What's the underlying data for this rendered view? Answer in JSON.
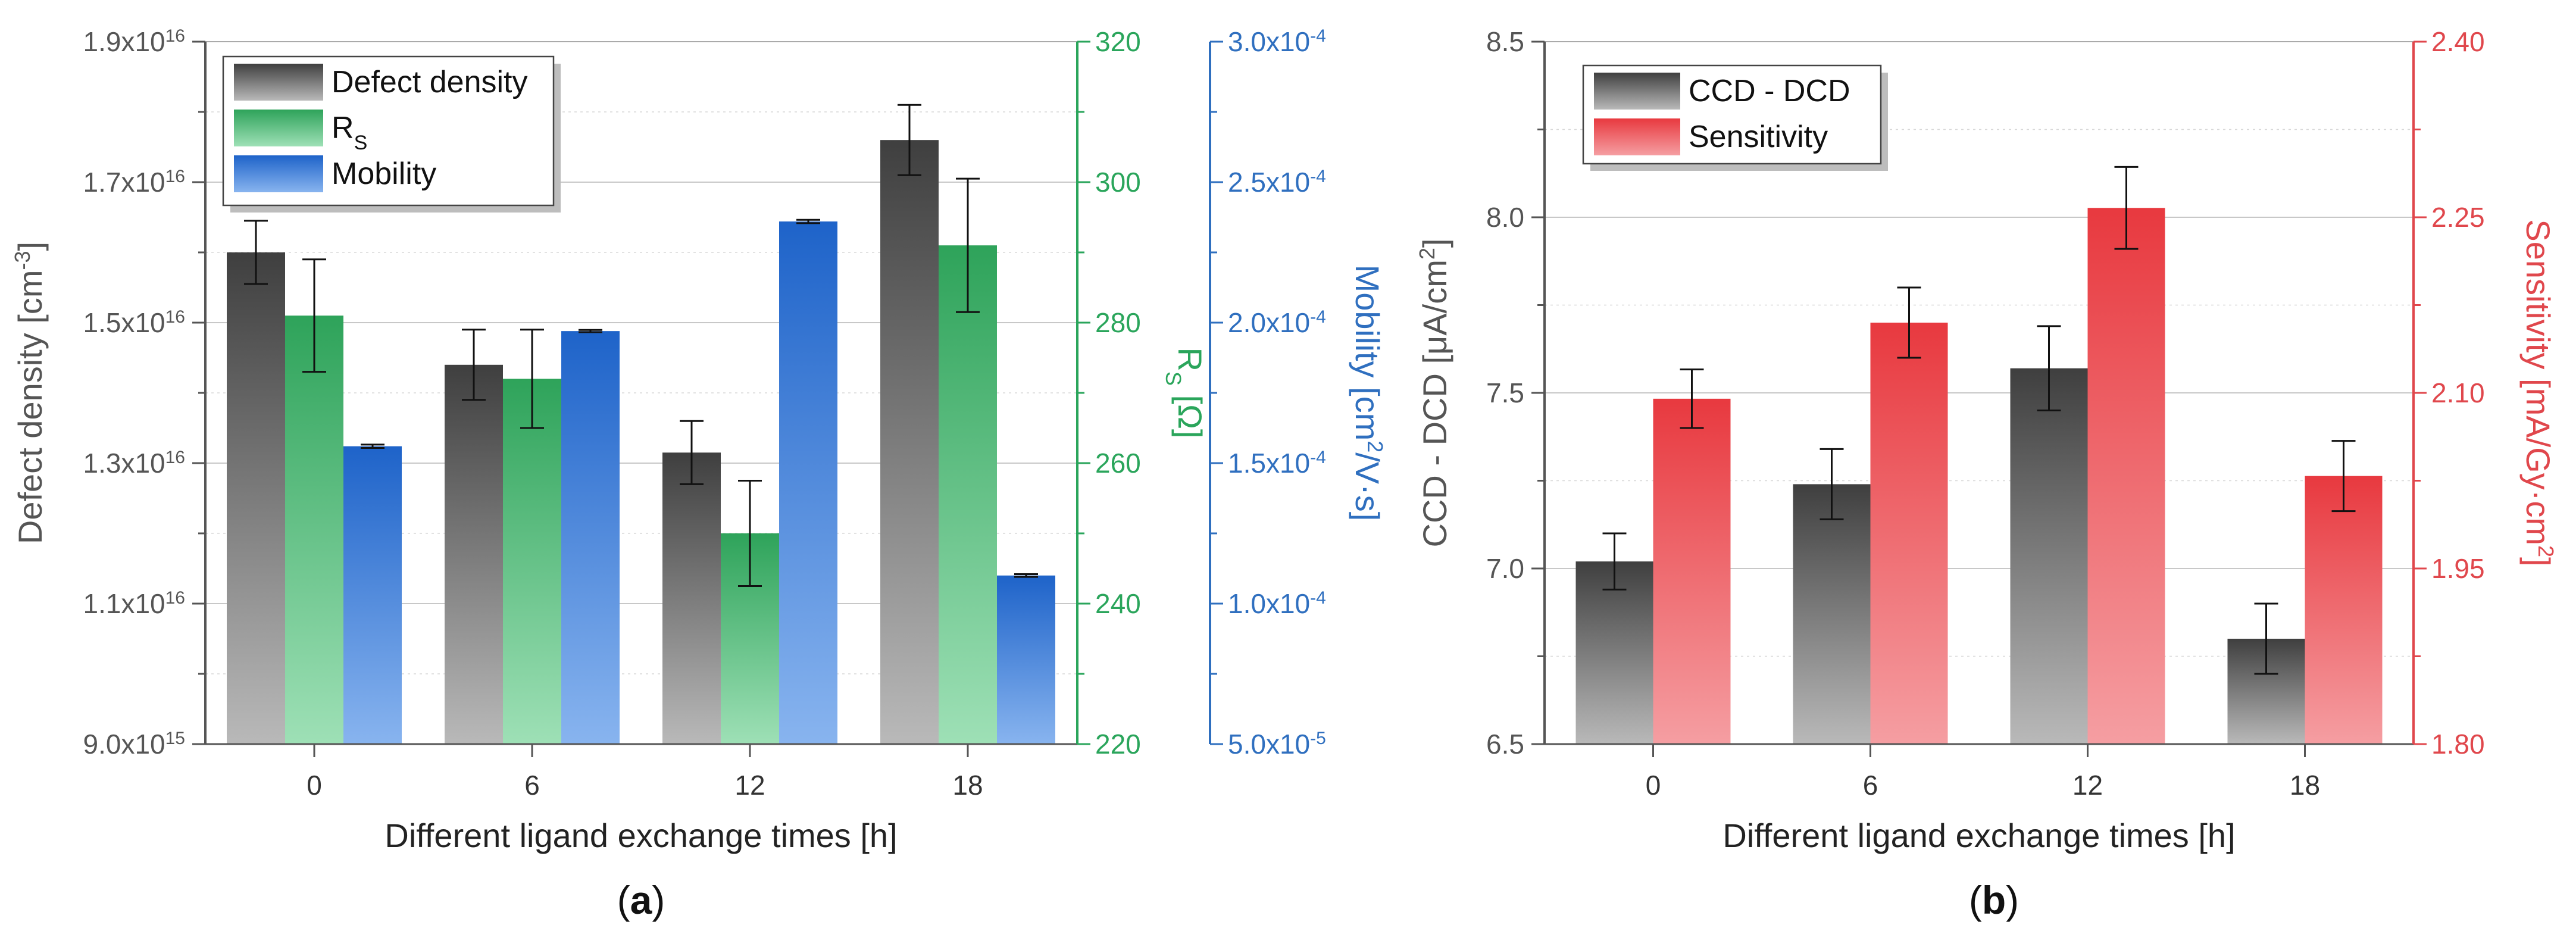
{
  "chart_data": [
    {
      "id": "a",
      "type": "bar",
      "panel_label": "(a)",
      "categories": [
        "0",
        "6",
        "12",
        "18"
      ],
      "xlabel": "Different ligand exchange times [h]",
      "axes": [
        {
          "id": "y1",
          "side": "left",
          "color": "#555555",
          "text_color": "#555555",
          "range": [
            9000000000000000.0,
            1.9e+16
          ],
          "ticks": [
            9000000000000000.0,
            1.1e+16,
            1.3e+16,
            1.5e+16,
            1.7e+16,
            1.9e+16
          ],
          "tick_labels": [
            {
              "m": "9.0x10",
              "e": "15"
            },
            {
              "m": "1.1x10",
              "e": "16"
            },
            {
              "m": "1.3x10",
              "e": "16"
            },
            {
              "m": "1.5x10",
              "e": "16"
            },
            {
              "m": "1.7x10",
              "e": "16"
            },
            {
              "m": "1.9x10",
              "e": "16"
            }
          ],
          "label_parts": [
            {
              "t": "Defect density [cm"
            },
            {
              "t": "-3",
              "sup": true
            },
            {
              "t": "]"
            }
          ]
        },
        {
          "id": "y2",
          "side": "right",
          "offset": 0,
          "color": "#2aa55b",
          "text_color": "#2aa55b",
          "range": [
            220,
            320
          ],
          "ticks": [
            220,
            240,
            260,
            280,
            300,
            320
          ],
          "tick_labels": [
            {
              "m": "220"
            },
            {
              "m": "240"
            },
            {
              "m": "260"
            },
            {
              "m": "280"
            },
            {
              "m": "300"
            },
            {
              "m": "320"
            }
          ],
          "label_parts": [
            {
              "t": "R"
            },
            {
              "t": "S",
              "sub": true
            },
            {
              "t": " [Ω]"
            }
          ]
        },
        {
          "id": "y3",
          "side": "right",
          "offset": 1,
          "color": "#2f6fbf",
          "text_color": "#2f6fbf",
          "range": [
            5e-05,
            0.0003
          ],
          "ticks": [
            5e-05,
            0.0001,
            0.00015,
            0.0002,
            0.00025,
            0.0003
          ],
          "tick_labels": [
            {
              "m": "5.0x10",
              "e": "-5"
            },
            {
              "m": "1.0x10",
              "e": "-4"
            },
            {
              "m": "1.5x10",
              "e": "-4"
            },
            {
              "m": "2.0x10",
              "e": "-4"
            },
            {
              "m": "2.5x10",
              "e": "-4"
            },
            {
              "m": "3.0x10",
              "e": "-4"
            }
          ],
          "label_parts": [
            {
              "t": "Mobility [cm"
            },
            {
              "t": "2",
              "sup": true
            },
            {
              "t": "/V·s]"
            }
          ]
        }
      ],
      "series": [
        {
          "name": "Defect density",
          "legend_parts": [
            {
              "t": "Defect density"
            }
          ],
          "axis": "y1",
          "values": [
            1.6e+16,
            1.44e+16,
            1.315e+16,
            1.76e+16
          ],
          "errors": [
            450000000000000.0,
            500000000000000.0,
            450000000000000.0,
            500000000000000.0
          ],
          "color_top": "#3f3f3f",
          "color_bottom": "#b9b9b9"
        },
        {
          "name": "RS",
          "legend_parts": [
            {
              "t": "R"
            },
            {
              "t": "S",
              "sub": true
            }
          ],
          "axis": "y2",
          "values": [
            281,
            272,
            250,
            291
          ],
          "errors": [
            8,
            7,
            7.5,
            9.5
          ],
          "color_top": "#2ea35a",
          "color_bottom": "#9ee0b6"
        },
        {
          "name": "Mobility",
          "legend_parts": [
            {
              "t": "Mobility"
            }
          ],
          "axis": "y3",
          "values": [
            0.000156,
            0.000197,
            0.000236,
            0.00011
          ],
          "errors": [
            6e-07,
            4e-07,
            6e-07,
            5e-07
          ],
          "color_top": "#1e63c9",
          "color_bottom": "#88b4ef"
        }
      ]
    },
    {
      "id": "b",
      "type": "bar",
      "panel_label": "(b)",
      "categories": [
        "0",
        "6",
        "12",
        "18"
      ],
      "xlabel": "Different ligand exchange times [h]",
      "axes": [
        {
          "id": "y1",
          "side": "left",
          "color": "#555555",
          "text_color": "#555555",
          "range": [
            6.5,
            8.5
          ],
          "ticks": [
            6.5,
            7.0,
            7.5,
            8.0,
            8.5
          ],
          "tick_labels": [
            {
              "m": "6.5"
            },
            {
              "m": "7.0"
            },
            {
              "m": "7.5"
            },
            {
              "m": "8.0"
            },
            {
              "m": "8.5"
            }
          ],
          "label_parts": [
            {
              "t": "CCD - DCD [μA/cm"
            },
            {
              "t": "2",
              "sup": true
            },
            {
              "t": "]"
            }
          ]
        },
        {
          "id": "y2",
          "side": "right",
          "offset": 0,
          "color": "#e0474c",
          "text_color": "#e0474c",
          "range": [
            1.8,
            2.4
          ],
          "ticks": [
            1.8,
            1.95,
            2.1,
            2.25,
            2.4
          ],
          "tick_labels": [
            {
              "m": "1.80"
            },
            {
              "m": "1.95"
            },
            {
              "m": "2.10"
            },
            {
              "m": "2.25"
            },
            {
              "m": "2.40"
            }
          ],
          "label_parts": [
            {
              "t": "Sensitivity [mA/Gy·cm"
            },
            {
              "t": "2",
              "sup": true
            },
            {
              "t": "]"
            }
          ]
        }
      ],
      "series": [
        {
          "name": "CCD - DCD",
          "legend_parts": [
            {
              "t": "CCD - DCD"
            }
          ],
          "axis": "y1",
          "values": [
            7.02,
            7.24,
            7.57,
            6.8
          ],
          "errors": [
            0.08,
            0.1,
            0.12,
            0.1
          ],
          "color_top": "#3f3f3f",
          "color_bottom": "#b9b9b9"
        },
        {
          "name": "Sensitivity",
          "legend_parts": [
            {
              "t": "Sensitivity"
            }
          ],
          "axis": "y2",
          "values": [
            2.095,
            2.16,
            2.258,
            2.029
          ],
          "errors": [
            0.025,
            0.03,
            0.035,
            0.03
          ],
          "color_top": "#e8393f",
          "color_bottom": "#f59ea2"
        }
      ]
    }
  ]
}
